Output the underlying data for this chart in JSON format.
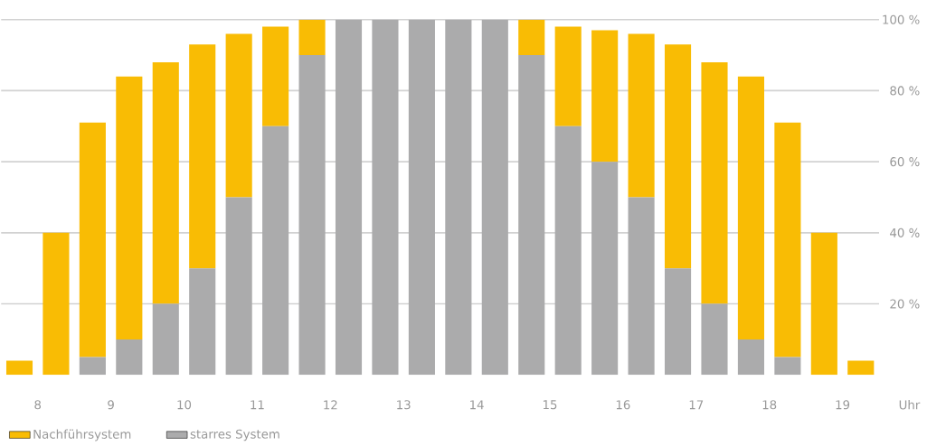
{
  "chart_data": {
    "type": "bar",
    "stacked": true,
    "x": [
      7.75,
      8.25,
      8.75,
      9.25,
      9.75,
      10.25,
      10.75,
      11.25,
      11.75,
      12.25,
      12.75,
      13.25,
      13.75,
      14.25,
      14.75,
      15.25,
      15.75,
      16.25,
      16.75,
      17.25,
      17.75,
      18.25,
      18.75,
      19.25
    ],
    "xlim": [
      7.5,
      19.5
    ],
    "xticks": [
      8,
      9,
      10,
      11,
      12,
      13,
      14,
      15,
      16,
      17,
      18,
      19
    ],
    "xlabel": "Uhr",
    "ylim": [
      0,
      100
    ],
    "yticks": [
      {
        "value": 20,
        "label": "20 %"
      },
      {
        "value": 40,
        "label": "40 %"
      },
      {
        "value": 60,
        "label": "60 %"
      },
      {
        "value": 80,
        "label": "80 %"
      },
      {
        "value": 100,
        "label": "100 %"
      }
    ],
    "grid": "y",
    "legend": "bottom",
    "series": [
      {
        "name": "starres System",
        "color": "#ababac",
        "values": [
          0,
          0,
          5,
          10,
          20,
          30,
          50,
          70,
          90,
          100,
          100,
          100,
          100,
          100,
          90,
          70,
          60,
          50,
          30,
          20,
          10,
          5,
          0,
          0
        ]
      },
      {
        "name": "Nachführsystem",
        "color": "#f9bc04",
        "values": [
          4,
          40,
          66,
          74,
          68,
          63,
          46,
          28,
          10,
          0,
          0,
          0,
          0,
          0,
          10,
          28,
          37,
          46,
          63,
          68,
          74,
          66,
          40,
          4
        ]
      }
    ]
  }
}
